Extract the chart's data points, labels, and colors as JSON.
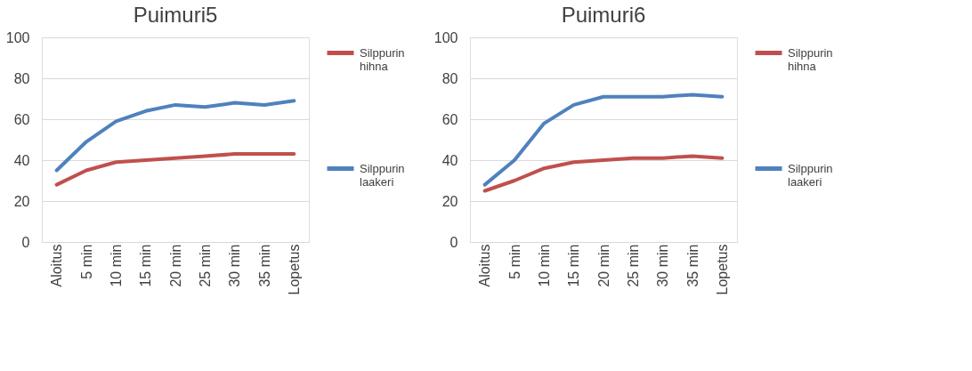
{
  "chart_data": [
    {
      "type": "line",
      "title": "Puimuri5",
      "categories": [
        "Aloitus",
        "5 min",
        "10 min",
        "15 min",
        "20 min",
        "25 min",
        "30 min",
        "35 min",
        "Lopetus"
      ],
      "ylim": [
        0,
        100
      ],
      "yticks": [
        0,
        20,
        40,
        60,
        80,
        100
      ],
      "grid": "y",
      "legend": "right",
      "series": [
        {
          "name": "Silppurin hihna",
          "color": "#c0504d",
          "values": [
            28,
            35,
            39,
            40,
            41,
            42,
            43,
            43,
            43
          ]
        },
        {
          "name": "Silppurin laakeri",
          "color": "#4f81bd",
          "values": [
            35,
            49,
            59,
            64,
            67,
            66,
            68,
            67,
            69
          ]
        }
      ]
    },
    {
      "type": "line",
      "title": "Puimuri6",
      "categories": [
        "Aloitus",
        "5 min",
        "10 min",
        "15 min",
        "20 min",
        "25 min",
        "30 min",
        "35 min",
        "Lopetus"
      ],
      "ylim": [
        0,
        100
      ],
      "yticks": [
        0,
        20,
        40,
        60,
        80,
        100
      ],
      "grid": "y",
      "legend": "right",
      "series": [
        {
          "name": "Silppurin hihna",
          "color": "#c0504d",
          "values": [
            25,
            30,
            36,
            39,
            40,
            41,
            41,
            42,
            41
          ]
        },
        {
          "name": "Silppurin laakeri",
          "color": "#4f81bd",
          "values": [
            28,
            40,
            58,
            67,
            71,
            71,
            71,
            72,
            71
          ]
        }
      ]
    }
  ]
}
